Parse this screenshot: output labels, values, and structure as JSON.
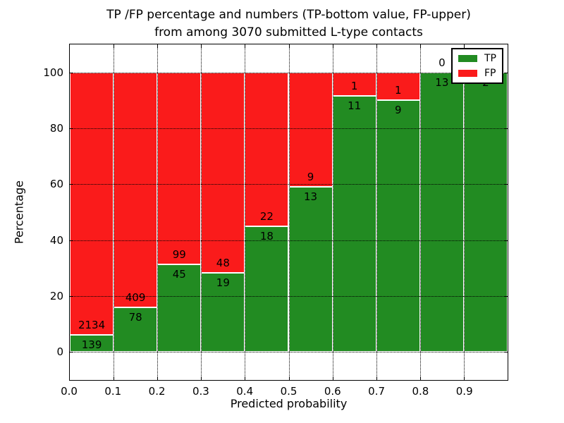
{
  "figure": {
    "title_line1": "TP /FP percentage and numbers (TP-bottom value, FP-upper)",
    "title_line2": "from among 3070 submitted L-type contacts",
    "xlabel": "Predicted probability",
    "ylabel": "Percentage"
  },
  "legend": {
    "position": "upper right",
    "items": [
      {
        "label": "TP",
        "color": "#228B22"
      },
      {
        "label": "FP",
        "color": "#FA1B1B"
      }
    ]
  },
  "chart_data": {
    "type": "bar",
    "stacked": true,
    "title": "TP /FP percentage and numbers (TP-bottom value, FP-upper) from among 3070 submitted L-type contacts",
    "xlabel": "Predicted probability",
    "ylabel": "Percentage",
    "total_submitted": 3070,
    "xlim": [
      0.0,
      1.0
    ],
    "ylim": [
      -10,
      110
    ],
    "grid": true,
    "x_tick_values": [
      0.0,
      0.1,
      0.2,
      0.3,
      0.4,
      0.5,
      0.6,
      0.7,
      0.8,
      0.9
    ],
    "x_tick_labels": [
      "0.0",
      "0.1",
      "0.2",
      "0.3",
      "0.4",
      "0.5",
      "0.6",
      "0.7",
      "0.8",
      "0.9"
    ],
    "y_tick_values": [
      0,
      20,
      40,
      60,
      80,
      100
    ],
    "y_tick_labels": [
      "0",
      "20",
      "40",
      "60",
      "80",
      "100"
    ],
    "colors": {
      "tp": "#228B22",
      "fp": "#FA1B1B"
    },
    "bins": [
      {
        "range": [
          0.0,
          0.1
        ],
        "tp_count": 139,
        "fp_count": 2134,
        "tp_percent": 6.1,
        "tp_label": "139",
        "fp_label": "2134"
      },
      {
        "range": [
          0.1,
          0.2
        ],
        "tp_count": 78,
        "fp_count": 409,
        "tp_percent": 16.0,
        "tp_label": "78",
        "fp_label": "409"
      },
      {
        "range": [
          0.2,
          0.3
        ],
        "tp_count": 45,
        "fp_count": 99,
        "tp_percent": 31.3,
        "tp_label": "45",
        "fp_label": "99"
      },
      {
        "range": [
          0.3,
          0.4
        ],
        "tp_count": 19,
        "fp_count": 48,
        "tp_percent": 28.4,
        "tp_label": "19",
        "fp_label": "48"
      },
      {
        "range": [
          0.4,
          0.5
        ],
        "tp_count": 18,
        "fp_count": 22,
        "tp_percent": 45.0,
        "tp_label": "18",
        "fp_label": "22"
      },
      {
        "range": [
          0.5,
          0.6
        ],
        "tp_count": 13,
        "fp_count": 9,
        "tp_percent": 59.1,
        "tp_label": "13",
        "fp_label": "9"
      },
      {
        "range": [
          0.6,
          0.7
        ],
        "tp_count": 11,
        "fp_count": 1,
        "tp_percent": 91.7,
        "tp_label": "11",
        "fp_label": "1"
      },
      {
        "range": [
          0.7,
          0.8
        ],
        "tp_count": 9,
        "fp_count": 1,
        "tp_percent": 90.0,
        "tp_label": "9",
        "fp_label": "1"
      },
      {
        "range": [
          0.8,
          0.9
        ],
        "tp_count": 13,
        "fp_count": 0,
        "tp_percent": 100.0,
        "tp_label": "13",
        "fp_label": "0"
      },
      {
        "range": [
          0.9,
          1.0
        ],
        "tp_count": 2,
        "fp_count": null,
        "tp_percent": 100.0,
        "tp_label": "2",
        "fp_label": null
      }
    ]
  }
}
